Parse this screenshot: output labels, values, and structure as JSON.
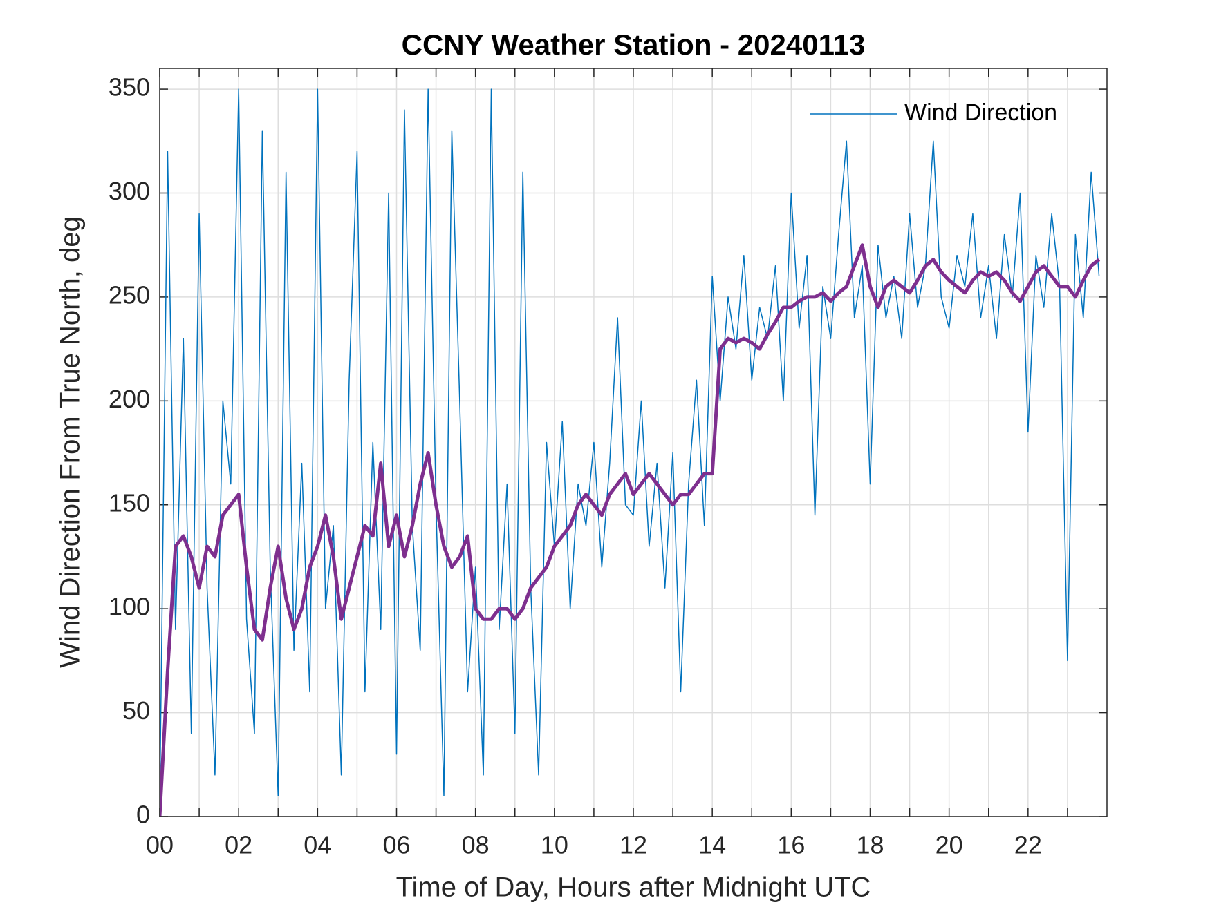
{
  "chart_data": {
    "type": "line",
    "title": "CCNY Weather Station - 20240113",
    "xlabel": "Time of Day, Hours after Midnight UTC",
    "ylabel": "Wind Direction From True North, deg",
    "x": [
      0,
      0.2,
      0.4,
      0.6,
      0.8,
      1,
      1.2,
      1.4,
      1.6,
      1.8,
      2,
      2.2,
      2.4,
      2.6,
      2.8,
      3,
      3.2,
      3.4,
      3.6,
      3.8,
      4,
      4.2,
      4.4,
      4.6,
      4.8,
      5,
      5.2,
      5.4,
      5.6,
      5.8,
      6,
      6.2,
      6.4,
      6.6,
      6.8,
      7,
      7.2,
      7.4,
      7.6,
      7.8,
      8,
      8.2,
      8.4,
      8.6,
      8.8,
      9,
      9.2,
      9.4,
      9.6,
      9.8,
      10,
      10.2,
      10.4,
      10.6,
      10.8,
      11,
      11.2,
      11.4,
      11.6,
      11.8,
      12,
      12.2,
      12.4,
      12.6,
      12.8,
      13,
      13.2,
      13.4,
      13.6,
      13.8,
      14,
      14.2,
      14.4,
      14.6,
      14.8,
      15,
      15.2,
      15.4,
      15.6,
      15.8,
      16,
      16.2,
      16.4,
      16.6,
      16.8,
      17,
      17.2,
      17.4,
      17.6,
      17.8,
      18,
      18.2,
      18.4,
      18.6,
      18.8,
      19,
      19.2,
      19.4,
      19.6,
      19.8,
      20,
      20.2,
      20.4,
      20.6,
      20.8,
      21,
      21.2,
      21.4,
      21.6,
      21.8,
      22,
      22.2,
      22.4,
      22.6,
      22.8,
      23,
      23.2,
      23.4,
      23.6,
      23.8
    ],
    "series": [
      {
        "name": "Wind Direction",
        "color": "#0072BD",
        "width": 1.5,
        "values": [
          5,
          320,
          90,
          230,
          40,
          290,
          110,
          20,
          200,
          160,
          350,
          95,
          40,
          330,
          120,
          10,
          310,
          80,
          170,
          60,
          350,
          100,
          140,
          20,
          210,
          320,
          60,
          180,
          90,
          300,
          30,
          340,
          140,
          80,
          350,
          150,
          10,
          330,
          200,
          60,
          120,
          20,
          350,
          90,
          160,
          40,
          310,
          110,
          20,
          180,
          130,
          190,
          100,
          160,
          140,
          180,
          120,
          170,
          240,
          150,
          145,
          200,
          130,
          170,
          110,
          175,
          60,
          160,
          210,
          140,
          260,
          200,
          250,
          225,
          270,
          210,
          245,
          230,
          265,
          200,
          300,
          235,
          270,
          145,
          255,
          230,
          280,
          325,
          240,
          265,
          160,
          275,
          240,
          260,
          230,
          290,
          245,
          265,
          325,
          250,
          235,
          270,
          255,
          290,
          240,
          265,
          230,
          280,
          250,
          300,
          185,
          270,
          245,
          290,
          255,
          75,
          280,
          240,
          310,
          260
        ]
      },
      {
        "color": "#7E2F8E",
        "width": 5,
        "values": [
          0,
          70,
          130,
          135,
          125,
          110,
          130,
          125,
          145,
          150,
          155,
          120,
          90,
          85,
          110,
          130,
          105,
          90,
          100,
          120,
          130,
          145,
          125,
          95,
          110,
          125,
          140,
          135,
          170,
          130,
          145,
          125,
          140,
          160,
          175,
          150,
          130,
          120,
          125,
          135,
          100,
          95,
          95,
          100,
          100,
          95,
          100,
          110,
          115,
          120,
          130,
          135,
          140,
          150,
          155,
          150,
          145,
          155,
          160,
          165,
          155,
          160,
          165,
          160,
          155,
          150,
          155,
          155,
          160,
          165,
          165,
          225,
          230,
          228,
          230,
          228,
          225,
          232,
          238,
          245,
          245,
          248,
          250,
          250,
          252,
          248,
          252,
          255,
          265,
          275,
          255,
          245,
          255,
          258,
          255,
          252,
          258,
          265,
          268,
          262,
          258,
          255,
          252,
          258,
          262,
          260,
          262,
          258,
          252,
          248,
          255,
          262,
          265,
          260,
          255,
          255,
          250,
          258,
          265,
          268
        ]
      }
    ],
    "xlim": [
      0,
      24
    ],
    "ylim": [
      0,
      360
    ],
    "xticks": [
      {
        "value": 0,
        "label": "00"
      },
      {
        "value": 2,
        "label": "02"
      },
      {
        "value": 4,
        "label": "04"
      },
      {
        "value": 6,
        "label": "06"
      },
      {
        "value": 8,
        "label": "08"
      },
      {
        "value": 10,
        "label": "10"
      },
      {
        "value": 12,
        "label": "12"
      },
      {
        "value": 14,
        "label": "14"
      },
      {
        "value": 16,
        "label": "16"
      },
      {
        "value": 18,
        "label": "18"
      },
      {
        "value": 20,
        "label": "20"
      },
      {
        "value": 22,
        "label": "22"
      }
    ],
    "xminorticks": [
      1,
      3,
      5,
      7,
      9,
      11,
      13,
      15,
      17,
      19,
      21,
      23
    ],
    "yticks": [
      0,
      50,
      100,
      150,
      200,
      250,
      300,
      350
    ],
    "grid": true,
    "legend": "top-right"
  }
}
